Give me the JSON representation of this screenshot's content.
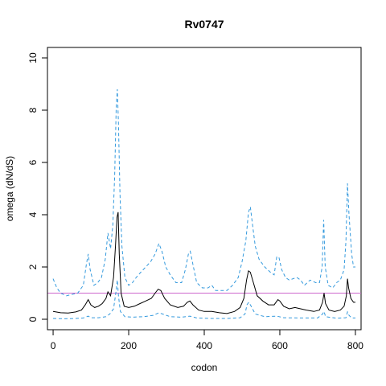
{
  "chart_data": {
    "type": "line",
    "title": "Rv0747",
    "xlabel": "codon",
    "ylabel": "omega (dN/dS)",
    "xlim": [
      -15,
      815
    ],
    "ylim": [
      -0.4,
      10.4
    ],
    "x_ticks": [
      0,
      200,
      400,
      600,
      800
    ],
    "y_ticks": [
      0,
      2,
      4,
      6,
      8,
      10
    ],
    "grid": false,
    "legend": "none",
    "reference_line": {
      "y": 1,
      "color": "#cc66cc"
    },
    "series": [
      {
        "role": "upper",
        "color": "#3399dd",
        "dash": true,
        "points": [
          [
            0,
            1.55
          ],
          [
            10,
            1.2
          ],
          [
            20,
            1.0
          ],
          [
            35,
            0.9
          ],
          [
            50,
            0.95
          ],
          [
            65,
            1.0
          ],
          [
            80,
            1.3
          ],
          [
            88,
            2.1
          ],
          [
            93,
            2.5
          ],
          [
            98,
            1.9
          ],
          [
            108,
            1.3
          ],
          [
            118,
            1.4
          ],
          [
            128,
            1.6
          ],
          [
            138,
            2.3
          ],
          [
            145,
            3.3
          ],
          [
            152,
            2.7
          ],
          [
            158,
            3.6
          ],
          [
            163,
            5.5
          ],
          [
            167,
            8.1
          ],
          [
            170,
            8.8
          ],
          [
            173,
            7.5
          ],
          [
            177,
            4.8
          ],
          [
            182,
            2.8
          ],
          [
            190,
            1.6
          ],
          [
            200,
            1.3
          ],
          [
            210,
            1.4
          ],
          [
            220,
            1.6
          ],
          [
            232,
            1.8
          ],
          [
            245,
            2.0
          ],
          [
            258,
            2.2
          ],
          [
            270,
            2.5
          ],
          [
            280,
            2.9
          ],
          [
            288,
            2.6
          ],
          [
            298,
            2.0
          ],
          [
            310,
            1.7
          ],
          [
            325,
            1.4
          ],
          [
            340,
            1.4
          ],
          [
            350,
            1.9
          ],
          [
            358,
            2.5
          ],
          [
            363,
            2.6
          ],
          [
            370,
            2.1
          ],
          [
            380,
            1.4
          ],
          [
            395,
            1.2
          ],
          [
            410,
            1.2
          ],
          [
            420,
            1.3
          ],
          [
            430,
            1.1
          ],
          [
            445,
            1.1
          ],
          [
            460,
            1.1
          ],
          [
            475,
            1.3
          ],
          [
            490,
            1.6
          ],
          [
            500,
            2.2
          ],
          [
            510,
            3.0
          ],
          [
            517,
            4.1
          ],
          [
            522,
            4.3
          ],
          [
            528,
            3.6
          ],
          [
            535,
            2.8
          ],
          [
            545,
            2.3
          ],
          [
            560,
            2.0
          ],
          [
            575,
            1.8
          ],
          [
            585,
            1.7
          ],
          [
            592,
            2.4
          ],
          [
            598,
            2.35
          ],
          [
            605,
            1.9
          ],
          [
            615,
            1.6
          ],
          [
            625,
            1.5
          ],
          [
            635,
            1.55
          ],
          [
            645,
            1.6
          ],
          [
            655,
            1.5
          ],
          [
            665,
            1.3
          ],
          [
            680,
            1.5
          ],
          [
            695,
            1.4
          ],
          [
            705,
            1.4
          ],
          [
            712,
            2.0
          ],
          [
            716,
            3.8
          ],
          [
            720,
            2.0
          ],
          [
            728,
            1.3
          ],
          [
            740,
            1.2
          ],
          [
            750,
            1.4
          ],
          [
            760,
            1.5
          ],
          [
            770,
            1.9
          ],
          [
            775,
            3.0
          ],
          [
            779,
            5.2
          ],
          [
            783,
            4.0
          ],
          [
            790,
            2.5
          ],
          [
            795,
            2.0
          ],
          [
            800,
            2.0
          ]
        ]
      },
      {
        "role": "estimate",
        "color": "#000000",
        "dash": false,
        "points": [
          [
            0,
            0.3
          ],
          [
            20,
            0.25
          ],
          [
            40,
            0.24
          ],
          [
            60,
            0.28
          ],
          [
            75,
            0.35
          ],
          [
            85,
            0.55
          ],
          [
            93,
            0.75
          ],
          [
            100,
            0.55
          ],
          [
            110,
            0.45
          ],
          [
            120,
            0.5
          ],
          [
            130,
            0.6
          ],
          [
            140,
            0.8
          ],
          [
            145,
            1.05
          ],
          [
            152,
            0.9
          ],
          [
            160,
            1.6
          ],
          [
            165,
            2.8
          ],
          [
            169,
            3.9
          ],
          [
            172,
            4.1
          ],
          [
            175,
            2.5
          ],
          [
            180,
            1.0
          ],
          [
            188,
            0.5
          ],
          [
            200,
            0.45
          ],
          [
            215,
            0.5
          ],
          [
            230,
            0.6
          ],
          [
            245,
            0.7
          ],
          [
            260,
            0.8
          ],
          [
            270,
            1.0
          ],
          [
            278,
            1.15
          ],
          [
            285,
            1.1
          ],
          [
            295,
            0.8
          ],
          [
            310,
            0.55
          ],
          [
            330,
            0.45
          ],
          [
            345,
            0.5
          ],
          [
            355,
            0.65
          ],
          [
            362,
            0.7
          ],
          [
            370,
            0.55
          ],
          [
            385,
            0.35
          ],
          [
            400,
            0.3
          ],
          [
            420,
            0.3
          ],
          [
            440,
            0.25
          ],
          [
            460,
            0.22
          ],
          [
            480,
            0.3
          ],
          [
            495,
            0.45
          ],
          [
            505,
            0.8
          ],
          [
            512,
            1.5
          ],
          [
            517,
            1.85
          ],
          [
            522,
            1.8
          ],
          [
            530,
            1.4
          ],
          [
            540,
            0.9
          ],
          [
            555,
            0.7
          ],
          [
            570,
            0.55
          ],
          [
            585,
            0.55
          ],
          [
            595,
            0.75
          ],
          [
            600,
            0.7
          ],
          [
            610,
            0.5
          ],
          [
            625,
            0.4
          ],
          [
            640,
            0.45
          ],
          [
            655,
            0.4
          ],
          [
            670,
            0.35
          ],
          [
            690,
            0.3
          ],
          [
            705,
            0.35
          ],
          [
            713,
            0.65
          ],
          [
            717,
            1.0
          ],
          [
            721,
            0.6
          ],
          [
            730,
            0.35
          ],
          [
            745,
            0.3
          ],
          [
            760,
            0.35
          ],
          [
            770,
            0.5
          ],
          [
            776,
            0.9
          ],
          [
            779,
            1.55
          ],
          [
            782,
            1.2
          ],
          [
            788,
            0.8
          ],
          [
            795,
            0.65
          ],
          [
            800,
            0.65
          ]
        ]
      },
      {
        "role": "lower",
        "color": "#3399dd",
        "dash": true,
        "points": [
          [
            0,
            0.03
          ],
          [
            30,
            0.02
          ],
          [
            60,
            0.03
          ],
          [
            80,
            0.05
          ],
          [
            93,
            0.12
          ],
          [
            100,
            0.06
          ],
          [
            120,
            0.06
          ],
          [
            140,
            0.1
          ],
          [
            150,
            0.2
          ],
          [
            160,
            0.4
          ],
          [
            166,
            1.0
          ],
          [
            170,
            1.5
          ],
          [
            173,
            0.9
          ],
          [
            178,
            0.3
          ],
          [
            190,
            0.1
          ],
          [
            210,
            0.08
          ],
          [
            240,
            0.1
          ],
          [
            265,
            0.15
          ],
          [
            280,
            0.25
          ],
          [
            290,
            0.2
          ],
          [
            310,
            0.1
          ],
          [
            340,
            0.08
          ],
          [
            362,
            0.12
          ],
          [
            380,
            0.05
          ],
          [
            420,
            0.03
          ],
          [
            460,
            0.03
          ],
          [
            495,
            0.06
          ],
          [
            508,
            0.2
          ],
          [
            513,
            0.55
          ],
          [
            518,
            0.65
          ],
          [
            524,
            0.5
          ],
          [
            535,
            0.2
          ],
          [
            560,
            0.1
          ],
          [
            592,
            0.12
          ],
          [
            610,
            0.06
          ],
          [
            650,
            0.05
          ],
          [
            700,
            0.05
          ],
          [
            713,
            0.2
          ],
          [
            717,
            0.3
          ],
          [
            721,
            0.1
          ],
          [
            750,
            0.04
          ],
          [
            775,
            0.06
          ],
          [
            779,
            0.28
          ],
          [
            783,
            0.15
          ],
          [
            790,
            0.05
          ],
          [
            800,
            0.05
          ]
        ]
      }
    ]
  }
}
